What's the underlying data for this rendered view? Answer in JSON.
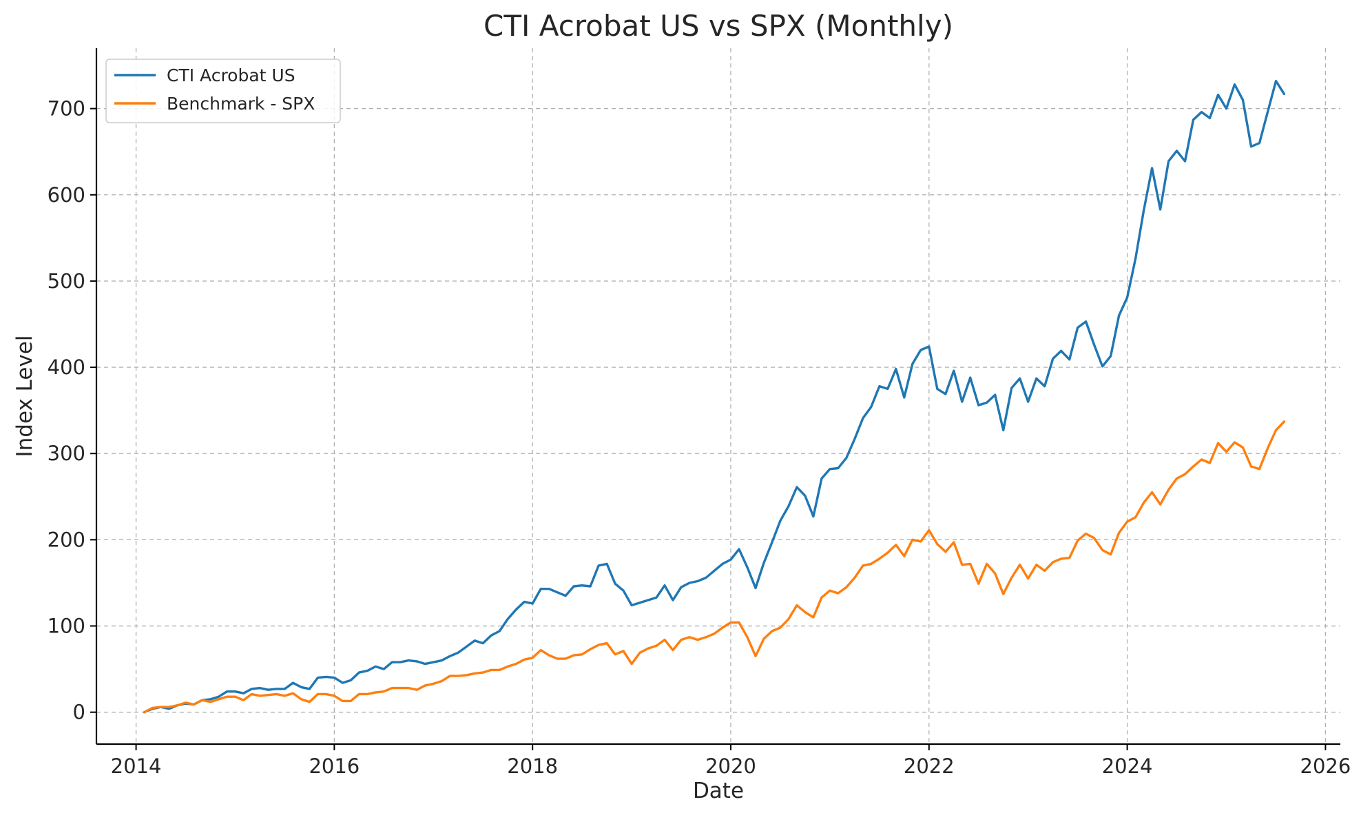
{
  "chart_data": {
    "type": "line",
    "title": "CTI Acrobat US vs SPX (Monthly)",
    "xlabel": "Date",
    "ylabel": "Index Level",
    "xlim": [
      2013.6,
      2026.15
    ],
    "ylim": [
      -37,
      770
    ],
    "x_ticks": [
      2014,
      2016,
      2018,
      2020,
      2022,
      2024,
      2026
    ],
    "x_tick_labels": [
      "2014",
      "2016",
      "2018",
      "2020",
      "2022",
      "2024",
      "2026"
    ],
    "y_ticks": [
      0,
      100,
      200,
      300,
      400,
      500,
      600,
      700
    ],
    "y_tick_labels": [
      "0",
      "100",
      "200",
      "300",
      "400",
      "500",
      "600",
      "700"
    ],
    "grid": true,
    "legend_position": "upper-left",
    "x_start": 2014.0833,
    "x_step": 0.083333,
    "series": [
      {
        "name": "CTI Acrobat US",
        "color": "#1f77b4",
        "values": [
          0,
          4,
          6,
          4,
          8,
          10,
          9,
          14,
          15,
          18,
          24,
          24,
          22,
          27,
          28,
          26,
          27,
          27,
          34,
          29,
          27,
          40,
          41,
          40,
          34,
          37,
          46,
          48,
          53,
          50,
          58,
          58,
          60,
          59,
          56,
          58,
          60,
          65,
          69,
          76,
          83,
          80,
          89,
          94,
          108,
          119,
          128,
          126,
          143,
          143,
          139,
          135,
          146,
          147,
          146,
          170,
          172,
          149,
          141,
          124,
          127,
          130,
          133,
          147,
          130,
          145,
          150,
          152,
          156,
          164,
          172,
          177,
          189,
          168,
          144,
          173,
          197,
          222,
          239,
          261,
          251,
          227,
          271,
          282,
          283,
          295,
          317,
          341,
          354,
          378,
          375,
          398,
          365,
          404,
          420,
          424,
          375,
          369,
          396,
          360,
          388,
          356,
          359,
          368,
          327,
          376,
          387,
          360,
          387,
          378,
          410,
          419,
          409,
          446,
          453,
          426,
          401,
          413,
          460,
          481,
          526,
          582,
          631,
          583,
          639,
          651,
          639,
          687,
          696,
          689,
          716,
          700,
          728,
          710,
          656,
          660,
          696,
          732,
          717
        ]
      },
      {
        "name": "Benchmark - SPX",
        "color": "#ff7f0e",
        "values": [
          0,
          5,
          6,
          6,
          8,
          11,
          9,
          14,
          12,
          15,
          18,
          18,
          14,
          21,
          19,
          20,
          21,
          19,
          22,
          15,
          12,
          21,
          21,
          19,
          13,
          13,
          21,
          21,
          23,
          24,
          28,
          28,
          28,
          26,
          31,
          33,
          36,
          42,
          42,
          43,
          45,
          46,
          49,
          49,
          53,
          56,
          61,
          63,
          72,
          66,
          62,
          62,
          66,
          67,
          73,
          78,
          80,
          67,
          71,
          56,
          69,
          74,
          77,
          84,
          72,
          84,
          87,
          84,
          87,
          91,
          98,
          104,
          104,
          87,
          65,
          85,
          94,
          98,
          108,
          124,
          116,
          110,
          133,
          141,
          138,
          145,
          156,
          170,
          172,
          178,
          185,
          194,
          181,
          200,
          198,
          211,
          195,
          186,
          197,
          171,
          172,
          149,
          172,
          161,
          137,
          156,
          171,
          155,
          171,
          164,
          174,
          178,
          179,
          199,
          207,
          202,
          188,
          183,
          208,
          221,
          226,
          243,
          255,
          241,
          258,
          271,
          276,
          285,
          293,
          289,
          312,
          302,
          313,
          307,
          285,
          282,
          306,
          327,
          337
        ]
      }
    ]
  }
}
